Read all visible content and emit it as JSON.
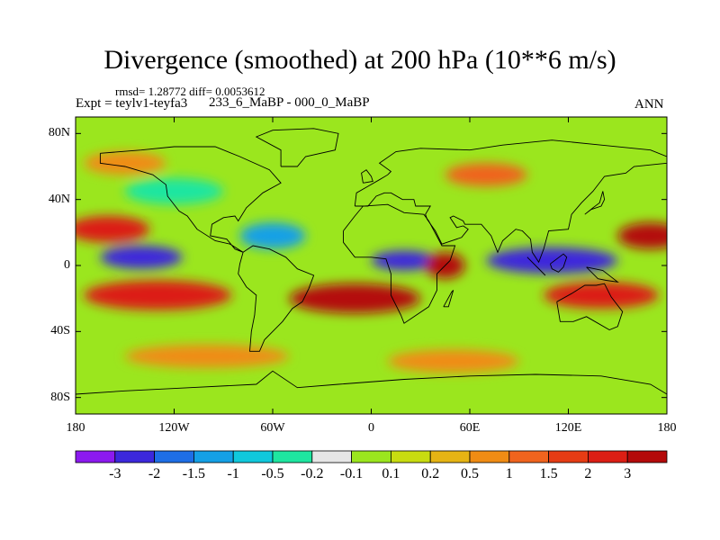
{
  "chart_data": {
    "type": "heatmap",
    "title": "Divergence (smoothed) at 200 hPa (10**6 m/s)",
    "rmsd_label": "rmsd= 1.28772 diff= 0.0053612",
    "expt_label": "Expt = teylv1-teyfa3",
    "case_label": "233_6_MaBP - 000_0_MaBP",
    "season": "ANN",
    "xlim": [
      -180,
      180
    ],
    "ylim": [
      -90,
      90
    ],
    "x_ticks": [
      {
        "value": -180,
        "label": "180"
      },
      {
        "value": -120,
        "label": "120W"
      },
      {
        "value": -60,
        "label": "60W"
      },
      {
        "value": 0,
        "label": "0"
      },
      {
        "value": 60,
        "label": "60E"
      },
      {
        "value": 120,
        "label": "120E"
      },
      {
        "value": 180,
        "label": "180"
      }
    ],
    "y_ticks": [
      {
        "value": 80,
        "label": "80N"
      },
      {
        "value": 40,
        "label": "40N"
      },
      {
        "value": 0,
        "label": "0"
      },
      {
        "value": -40,
        "label": "40S"
      },
      {
        "value": -80,
        "label": "80S"
      }
    ],
    "colorbar": {
      "levels": [
        "-3",
        "-2",
        "-1.5",
        "-1",
        "-0.5",
        "-0.2",
        "-0.1",
        "0.1",
        "0.2",
        "0.5",
        "1",
        "1.5",
        "2",
        "3"
      ],
      "colors": [
        "#8c1aef",
        "#3c28dc",
        "#1e6ee6",
        "#14a0e6",
        "#10c8dc",
        "#1ee6a0",
        "#e6e6e6",
        "#9be61e",
        "#c8dc10",
        "#e6b414",
        "#f08c14",
        "#f0641e",
        "#e63c14",
        "#dc1e14",
        "#b40a0a"
      ]
    },
    "field_regions": [
      {
        "lon": 110,
        "lat": 3,
        "rlon": 40,
        "rlat": 8,
        "value": -3
      },
      {
        "lon": -140,
        "lat": 5,
        "rlon": 25,
        "rlat": 7,
        "value": -3
      },
      {
        "lon": 20,
        "lat": 3,
        "rlon": 20,
        "rlat": 6,
        "value": -2.5
      },
      {
        "lon": -60,
        "lat": 18,
        "rlon": 20,
        "rlat": 8,
        "value": -1.5
      },
      {
        "lon": -120,
        "lat": 45,
        "rlon": 30,
        "rlat": 8,
        "value": -0.5
      },
      {
        "lon": -160,
        "lat": 22,
        "rlon": 25,
        "rlat": 8,
        "value": 2.5
      },
      {
        "lon": 170,
        "lat": 18,
        "rlon": 20,
        "rlat": 8,
        "value": 3
      },
      {
        "lon": -130,
        "lat": -18,
        "rlon": 45,
        "rlat": 9,
        "value": 2.5
      },
      {
        "lon": -10,
        "lat": -20,
        "rlon": 40,
        "rlat": 9,
        "value": 3
      },
      {
        "lon": 45,
        "lat": 0,
        "rlon": 12,
        "rlat": 8,
        "value": 3
      },
      {
        "lon": 140,
        "lat": -18,
        "rlon": 35,
        "rlat": 8,
        "value": 2
      },
      {
        "lon": -100,
        "lat": -55,
        "rlon": 50,
        "rlat": 7,
        "value": 0.5
      },
      {
        "lon": 50,
        "lat": -58,
        "rlon": 40,
        "rlat": 7,
        "value": 0.5
      },
      {
        "lon": -150,
        "lat": 62,
        "rlon": 25,
        "rlat": 7,
        "value": 0.5
      },
      {
        "lon": 70,
        "lat": 55,
        "rlon": 25,
        "rlat": 7,
        "value": 1
      }
    ]
  }
}
